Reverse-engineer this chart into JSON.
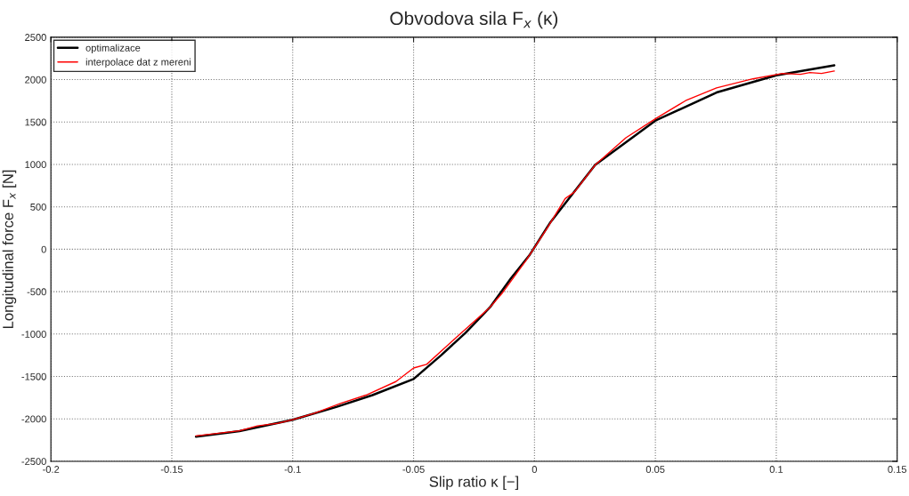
{
  "chart_data": {
    "type": "line",
    "title": "Obvodova sila F$_{x}$ (κ)",
    "xlabel": "Slip ratio κ [−]",
    "ylabel": "Longitudinal force F$_{x}$ [N]",
    "xlim": [
      -0.2,
      0.15
    ],
    "xticks": [
      -0.2,
      -0.15,
      -0.1,
      -0.05,
      0,
      0.05,
      0.1,
      0.15
    ],
    "ylim": [
      -2500,
      2500
    ],
    "yticks": [
      -2500,
      -2000,
      -1500,
      -1000,
      -500,
      0,
      500,
      1000,
      1500,
      2000,
      2500
    ],
    "grid": true,
    "legend": "top left",
    "line_style": "solid",
    "marker": "none",
    "series": [
      {
        "name": "optimalizace",
        "color": "#000000",
        "x": [
          -0.14,
          -0.122,
          -0.1,
          -0.082,
          -0.067,
          -0.05,
          -0.0386,
          -0.0285,
          -0.0184,
          -0.0097,
          -0.0022,
          0.0064,
          0.0251,
          0.05,
          0.0753,
          0.1,
          0.124
        ],
        "values": [
          -2210,
          -2145,
          -2010,
          -1860,
          -1720,
          -1530,
          -1250,
          -985,
          -684,
          -342,
          -75,
          310,
          994,
          1517,
          1848,
          2050,
          2169
        ]
      },
      {
        "name": "interpolace dat z mereni",
        "color": "#ff0000",
        "x": [
          -0.14,
          -0.122,
          -0.1146,
          -0.106,
          -0.1,
          -0.091,
          -0.08,
          -0.0697,
          -0.0573,
          -0.05,
          -0.0446,
          -0.0322,
          -0.0184,
          -0.0135,
          -0.0034,
          0.0052,
          0.0127,
          0.0165,
          0.0251,
          0.0378,
          0.05,
          0.0625,
          0.0753,
          0.0903,
          0.1026,
          0.11,
          0.1139,
          0.1187,
          0.124
        ],
        "values": [
          -2201,
          -2140,
          -2083,
          -2051,
          -2010,
          -1933,
          -1816,
          -1720,
          -1560,
          -1400,
          -1357,
          -1036,
          -684,
          -523,
          -128,
          246,
          598,
          673,
          994,
          1314,
          1538,
          1752,
          1902,
          2009,
          2073,
          2062,
          2083,
          2073,
          2101
        ]
      }
    ]
  }
}
